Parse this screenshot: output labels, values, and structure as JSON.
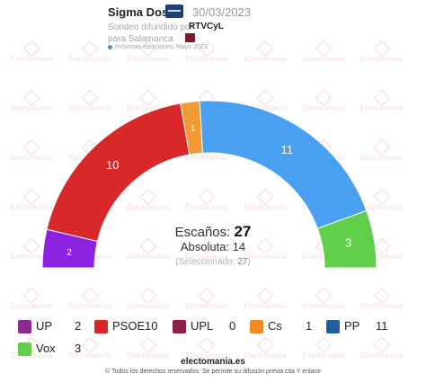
{
  "header": {
    "pollster": "Sigma Dos",
    "date": "30/03/2023",
    "line1": "Sondeo difundido por",
    "media": "RTVCyL",
    "line2": "para Salamanca",
    "next": "Próximas elecciones: Mayo 2023"
  },
  "watermark": "Electomania",
  "center": {
    "seats_label": "Escaños:",
    "seats_total": "27",
    "majority": "Absoluta: 14",
    "selected_label": "(Seleccionado:",
    "selected_value": "27",
    "selected_close": ")"
  },
  "chart_data": {
    "type": "pie",
    "title": "",
    "total": 27,
    "slices": [
      {
        "party": "UP",
        "value": 2,
        "color": "#8b22e0"
      },
      {
        "party": "PSOE",
        "value": 10,
        "color": "#d9282a"
      },
      {
        "party": "UPL",
        "value": 0,
        "color": "#8e1e4a"
      },
      {
        "party": "Cs",
        "value": 1,
        "color": "#ef9a35"
      },
      {
        "party": "PP",
        "value": 11,
        "color": "#4aa0f0"
      },
      {
        "party": "Vox",
        "value": 3,
        "color": "#62cf4a"
      }
    ]
  },
  "legend": [
    {
      "name": "UP",
      "value": "2",
      "color": "#8b2a8f"
    },
    {
      "name": "PSOE",
      "value": "10",
      "color": "#d9282a"
    },
    {
      "name": "UPL",
      "value": "0",
      "color": "#8e1e4a"
    },
    {
      "name": "Cs",
      "value": "1",
      "color": "#ef8a2a"
    },
    {
      "name": "PP",
      "value": "11",
      "color": "#1f5fa0"
    },
    {
      "name": "Vox",
      "value": "3",
      "color": "#62cf4a"
    }
  ],
  "footer": {
    "brand": "electomania.es",
    "legal": "© Todos los derechos reservados. Se permite su difusión previa cita Y enlace"
  }
}
